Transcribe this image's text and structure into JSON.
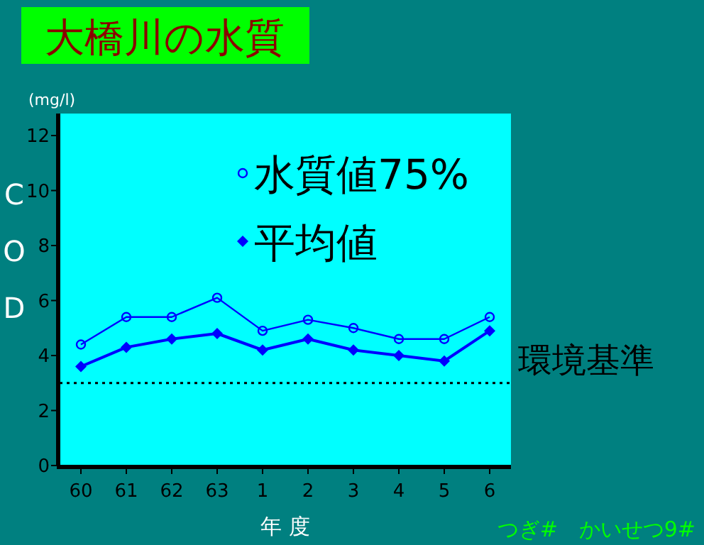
{
  "chart_data": {
    "type": "line",
    "title": "大橋川の水質",
    "ylabel": "COD",
    "xlabel": "年 度",
    "categories": [
      "60",
      "61",
      "62",
      "63",
      "1",
      "2",
      "3",
      "4",
      "5",
      "6"
    ],
    "series": [
      {
        "name": "水質値75%",
        "color": "#0000ff",
        "marker": "circle",
        "values": [
          4.4,
          5.4,
          5.4,
          6.1,
          4.9,
          5.3,
          5.0,
          4.6,
          4.6,
          5.4
        ]
      },
      {
        "name": "平均値",
        "color": "#0000ff",
        "marker": "diamond",
        "values": [
          3.6,
          4.3,
          4.6,
          4.8,
          4.2,
          4.6,
          4.2,
          4.0,
          3.8,
          4.9
        ]
      }
    ],
    "ylim": [
      0,
      12.8
    ],
    "yticks": [
      0,
      2,
      4,
      6,
      8,
      10,
      12
    ],
    "grid": false,
    "legend": "top right",
    "ref_lines": [
      {
        "axis": "y",
        "value": 3,
        "label": "環境基準",
        "color": "#000000",
        "line_style": "dotted"
      }
    ],
    "annotations": [
      "(mg/l)",
      "つぎ#　かいせつ9#"
    ]
  }
}
